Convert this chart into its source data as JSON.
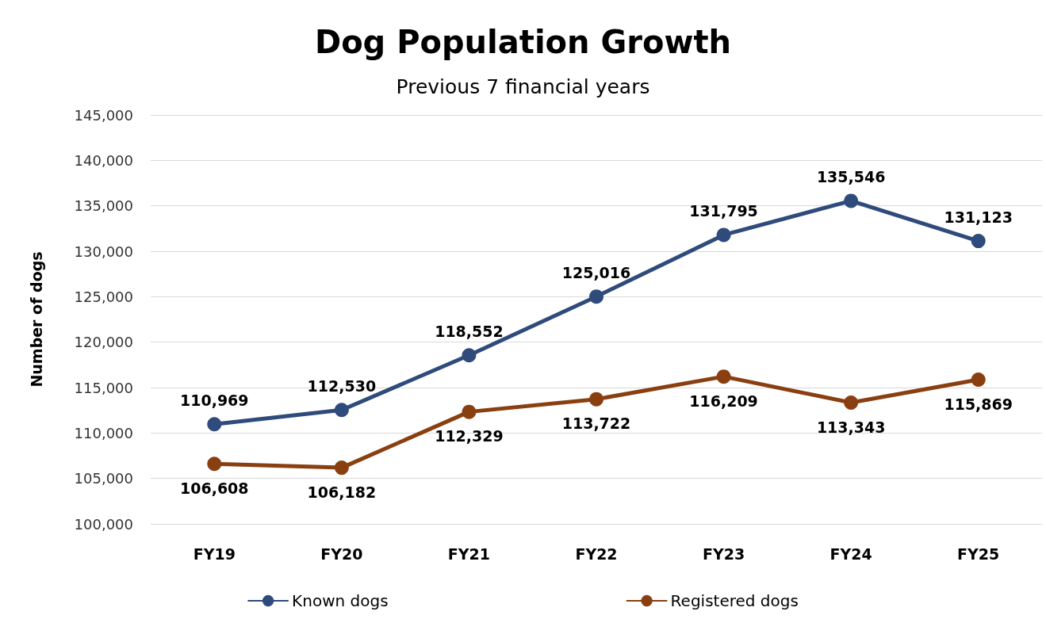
{
  "chart_data": {
    "type": "line",
    "title": "Dog Population Growth",
    "subtitle": "Previous 7 financial years",
    "ylabel": "Number of dogs",
    "categories": [
      "FY19",
      "FY20",
      "FY21",
      "FY22",
      "FY23",
      "FY24",
      "FY25"
    ],
    "series": [
      {
        "name": "Known dogs",
        "color": "#2f4b7c",
        "values": [
          110969,
          112530,
          118552,
          125016,
          131795,
          135546,
          131123
        ],
        "value_labels": [
          "110,969",
          "112,530",
          "118,552",
          "125,016",
          "131,795",
          "135,546",
          "131,123"
        ]
      },
      {
        "name": "Registered dogs",
        "color": "#8a3f10",
        "values": [
          106608,
          106182,
          112329,
          113722,
          116209,
          113343,
          115869
        ],
        "value_labels": [
          "106,608",
          "106,182",
          "112,329",
          "113,722",
          "116,209",
          "113,343",
          "115,869"
        ]
      }
    ],
    "ylim": [
      100000,
      145000
    ],
    "yticks": [
      {
        "value": 100000,
        "label": "100,000"
      },
      {
        "value": 105000,
        "label": "105,000"
      },
      {
        "value": 110000,
        "label": "110,000"
      },
      {
        "value": 115000,
        "label": "115,000"
      },
      {
        "value": 120000,
        "label": "120,000"
      },
      {
        "value": 125000,
        "label": "125,000"
      },
      {
        "value": 130000,
        "label": "130,000"
      },
      {
        "value": 135000,
        "label": "135,000"
      },
      {
        "value": 140000,
        "label": "140,000"
      },
      {
        "value": 145000,
        "label": "145,000"
      }
    ],
    "grid": "y",
    "legend": "bottom",
    "marker": "circle",
    "line_style": "solid"
  }
}
